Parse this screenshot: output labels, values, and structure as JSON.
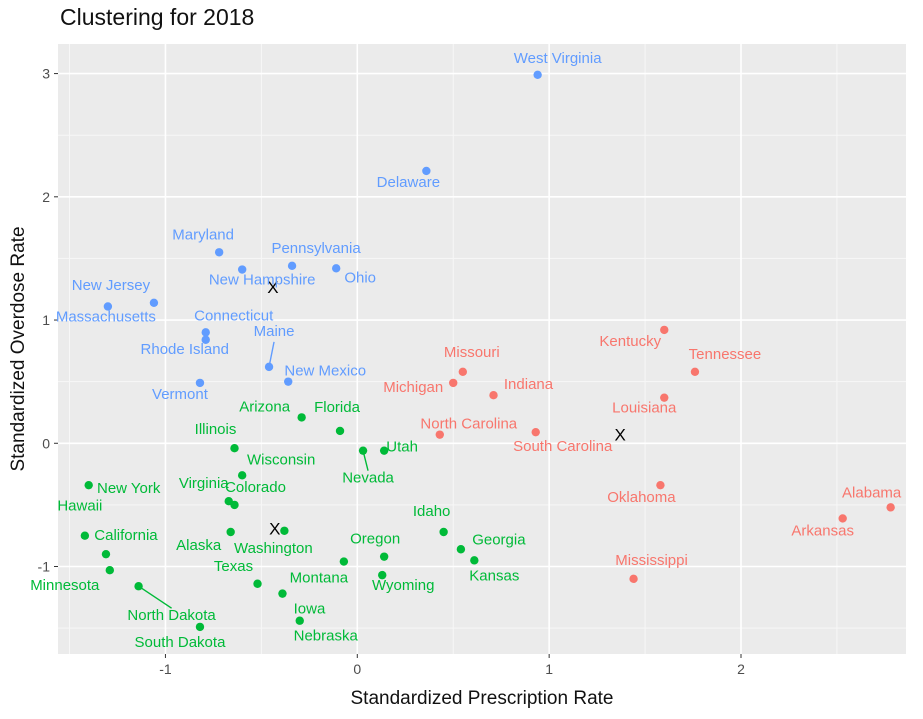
{
  "chart_data": {
    "type": "scatter",
    "title": "Clustering for 2018",
    "xlabel": "Standardized Prescription Rate",
    "ylabel": "Standardized Overdose Rate",
    "xlim": [
      -1.56,
      2.86
    ],
    "ylim": [
      -1.71,
      3.24
    ],
    "x_ticks": [
      -1,
      0,
      1,
      2
    ],
    "y_ticks": [
      -1,
      0,
      1,
      2,
      3
    ],
    "grid": true,
    "legend": "none",
    "colors": {
      "cluster1": "#f8766d",
      "cluster2": "#00ba38",
      "cluster3": "#619cff"
    },
    "series": [
      {
        "cluster": 1,
        "color": "#f8766d",
        "points": [
          {
            "label": "Kentucky",
            "x": 1.6,
            "y": 0.92
          },
          {
            "label": "Tennessee",
            "x": 1.76,
            "y": 0.58
          },
          {
            "label": "Missouri",
            "x": 0.55,
            "y": 0.58
          },
          {
            "label": "Michigan",
            "x": 0.5,
            "y": 0.49
          },
          {
            "label": "Indiana",
            "x": 0.71,
            "y": 0.39
          },
          {
            "label": "Louisiana",
            "x": 1.6,
            "y": 0.37
          },
          {
            "label": "North Carolina",
            "x": 0.43,
            "y": 0.07
          },
          {
            "label": "South Carolina",
            "x": 0.93,
            "y": 0.09
          },
          {
            "label": "Oklahoma",
            "x": 1.58,
            "y": -0.34
          },
          {
            "label": "Alabama",
            "x": 2.78,
            "y": -0.52
          },
          {
            "label": "Arkansas",
            "x": 2.53,
            "y": -0.61
          },
          {
            "label": "Mississippi",
            "x": 1.44,
            "y": -1.1
          }
        ]
      },
      {
        "cluster": 2,
        "color": "#00ba38",
        "points": [
          {
            "label": "Arizona",
            "x": -0.29,
            "y": 0.21
          },
          {
            "label": "Florida",
            "x": -0.09,
            "y": 0.1
          },
          {
            "label": "Illinois",
            "x": -0.64,
            "y": -0.04
          },
          {
            "label": "Utah",
            "x": 0.14,
            "y": -0.06
          },
          {
            "label": "Nevada",
            "x": 0.03,
            "y": -0.06
          },
          {
            "label": "Wisconsin",
            "x": -0.6,
            "y": -0.26
          },
          {
            "label": "New York",
            "x": -1.4,
            "y": -0.34
          },
          {
            "label": "Virginia",
            "x": -0.67,
            "y": -0.47
          },
          {
            "label": "Colorado",
            "x": -0.64,
            "y": -0.5
          },
          {
            "label": "Hawaii",
            "x": -1.42,
            "y": -0.75
          },
          {
            "label": "Alaska",
            "x": -0.66,
            "y": -0.72
          },
          {
            "label": "Washington",
            "x": -0.38,
            "y": -0.71
          },
          {
            "label": "Idaho",
            "x": 0.45,
            "y": -0.72
          },
          {
            "label": "Georgia",
            "x": 0.54,
            "y": -0.86
          },
          {
            "label": "Kansas",
            "x": 0.61,
            "y": -0.95
          },
          {
            "label": "California",
            "x": -1.31,
            "y": -0.9
          },
          {
            "label": "Oregon",
            "x": 0.14,
            "y": -0.92
          },
          {
            "label": "Montana",
            "x": -0.07,
            "y": -0.96
          },
          {
            "label": "Minnesota",
            "x": -1.29,
            "y": -1.03
          },
          {
            "label": "Wyoming",
            "x": 0.13,
            "y": -1.07
          },
          {
            "label": "Texas",
            "x": -0.52,
            "y": -1.14
          },
          {
            "label": "North Dakota",
            "x": -1.14,
            "y": -1.16
          },
          {
            "label": "Iowa",
            "x": -0.39,
            "y": -1.22
          },
          {
            "label": "Nebraska",
            "x": -0.3,
            "y": -1.44
          },
          {
            "label": "South Dakota",
            "x": -0.82,
            "y": -1.49
          }
        ]
      },
      {
        "cluster": 3,
        "color": "#619cff",
        "points": [
          {
            "label": "West Virginia",
            "x": 0.94,
            "y": 2.99
          },
          {
            "label": "Delaware",
            "x": 0.36,
            "y": 2.21
          },
          {
            "label": "Maryland",
            "x": -0.72,
            "y": 1.55
          },
          {
            "label": "Pennsylvania",
            "x": -0.34,
            "y": 1.44
          },
          {
            "label": "New Hampshire",
            "x": -0.6,
            "y": 1.41
          },
          {
            "label": "Ohio",
            "x": -0.11,
            "y": 1.42
          },
          {
            "label": "New Jersey",
            "x": -1.06,
            "y": 1.14
          },
          {
            "label": "Massachusetts",
            "x": -1.3,
            "y": 1.11
          },
          {
            "label": "Connecticut",
            "x": -0.79,
            "y": 0.9
          },
          {
            "label": "Rhode Island",
            "x": -0.79,
            "y": 0.84
          },
          {
            "label": "Maine",
            "x": -0.46,
            "y": 0.62
          },
          {
            "label": "New Mexico",
            "x": -0.36,
            "y": 0.5
          },
          {
            "label": "Vermont",
            "x": -0.82,
            "y": 0.49
          }
        ]
      }
    ],
    "centroids": [
      {
        "marker": "X",
        "x": -0.44,
        "y": 1.27
      },
      {
        "marker": "X",
        "x": 1.37,
        "y": 0.07
      },
      {
        "marker": "X",
        "x": -0.43,
        "y": -0.69
      }
    ]
  }
}
